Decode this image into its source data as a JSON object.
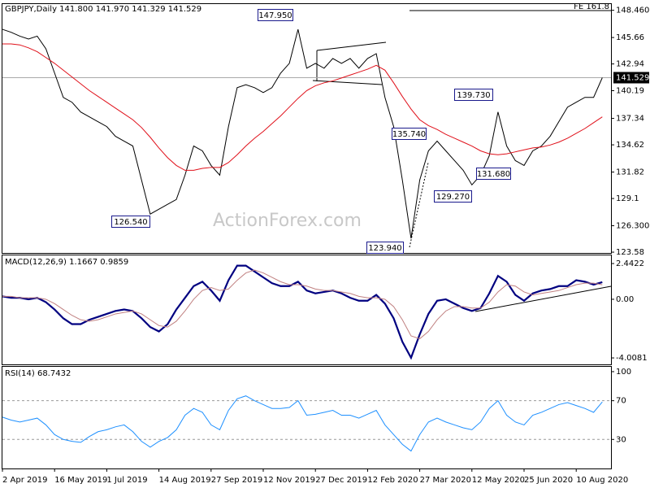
{
  "chart_data": [
    {
      "type": "line",
      "title": "GBPJPY,Daily  141.800 141.970 141.329 141.529",
      "x": [
        "2 Apr 2019",
        null,
        null,
        null,
        null,
        null,
        "16 May 2019",
        null,
        null,
        null,
        null,
        null,
        "1 Jul 2019",
        null,
        null,
        null,
        null,
        null,
        "14 Aug 2019",
        null,
        null,
        null,
        null,
        null,
        "27 Sep 2019",
        null,
        null,
        null,
        null,
        null,
        "12 Nov 2019",
        null,
        null,
        null,
        null,
        null,
        "27 Dec 2019",
        null,
        null,
        null,
        null,
        null,
        "12 Feb 2020",
        null,
        null,
        null,
        null,
        null,
        "27 Mar 2020",
        null,
        null,
        null,
        null,
        null,
        "12 May 2020",
        null,
        null,
        null,
        null,
        null,
        "25 Jun 2020",
        null,
        null,
        null,
        null,
        null,
        "10 Aug 2020",
        null,
        null,
        null
      ],
      "series": [
        {
          "color": "#000000",
          "values": [
            146.5,
            146.2,
            145.8,
            145.5,
            145.8,
            144.5,
            142.0,
            139.5,
            139.0,
            138.0,
            137.5,
            137.0,
            136.5,
            135.5,
            135.0,
            134.5,
            131.0,
            127.5,
            128.0,
            128.5,
            129.0,
            131.5,
            134.5,
            134.0,
            132.5,
            131.5,
            136.5,
            140.5,
            140.8,
            140.5,
            140.0,
            140.5,
            142.0,
            143.0,
            146.5,
            142.5,
            143.0,
            142.5,
            143.5,
            143.0,
            143.5,
            142.5,
            143.5,
            144.0,
            139.5,
            136.5,
            131.0,
            125.0,
            131.0,
            134.0,
            135.0,
            134.0,
            133.0,
            132.0,
            130.5,
            131.5,
            133.5,
            138.0,
            134.5,
            133.0,
            132.5,
            134.0,
            134.5,
            135.5,
            137.0,
            138.5,
            139.0,
            139.5,
            139.5,
            141.529
          ]
        },
        {
          "color": "#e0101a",
          "values": [
            145.0,
            145.0,
            144.9,
            144.6,
            144.2,
            143.6,
            143.0,
            142.3,
            141.6,
            140.9,
            140.2,
            139.6,
            139.0,
            138.4,
            137.8,
            137.2,
            136.4,
            135.4,
            134.3,
            133.3,
            132.5,
            132.0,
            132.0,
            132.2,
            132.3,
            132.3,
            132.8,
            133.6,
            134.5,
            135.3,
            136.0,
            136.8,
            137.6,
            138.5,
            139.4,
            140.2,
            140.7,
            141.0,
            141.2,
            141.5,
            141.8,
            142.1,
            142.4,
            142.8,
            142.3,
            141.0,
            139.6,
            138.3,
            137.2,
            136.6,
            136.2,
            135.7,
            135.3,
            134.9,
            134.5,
            134.0,
            133.7,
            133.6,
            133.7,
            133.9,
            134.1,
            134.3,
            134.4,
            134.6,
            134.9,
            135.3,
            135.8,
            136.3,
            136.9,
            137.5
          ]
        }
      ],
      "last": {
        "value": 141.529,
        "label": "141.529"
      },
      "ylim": [
        123.5,
        149.1
      ],
      "yticks": [
        {
          "value": 148.46,
          "label": "148.460"
        },
        145.66,
        142.94,
        140.19,
        137.34,
        134.62,
        131.82,
        129.1,
        {
          "value": 126.3,
          "label": "126.300"
        },
        123.58
      ],
      "annotations": [
        "147.950",
        "126.540",
        "123.940",
        "135.740",
        "139.730",
        "131.680",
        "129.270",
        "FE 161.8"
      ],
      "watermark": "ActionForex.com"
    },
    {
      "type": "line",
      "title": "MACD(12,26,9) 1.1667 0.9859",
      "series": [
        {
          "color": "#000080",
          "values": [
            0.2,
            0.1,
            0.1,
            0,
            0.1,
            -0.2,
            -0.7,
            -1.3,
            -1.7,
            -1.7,
            -1.4,
            -1.2,
            -1.0,
            -0.8,
            -0.7,
            -0.8,
            -1.3,
            -1.9,
            -2.2,
            -1.7,
            -0.7,
            0.1,
            0.9,
            1.2,
            0.6,
            -0.1,
            1.3,
            2.3,
            2.3,
            1.9,
            1.5,
            1.1,
            0.9,
            0.9,
            1.2,
            0.6,
            0.4,
            0.5,
            0.6,
            0.4,
            0.1,
            -0.1,
            -0.1,
            0.3,
            -0.3,
            -1.3,
            -2.9,
            -4.0,
            -2.4,
            -1.0,
            -0.1,
            0,
            -0.3,
            -0.6,
            -0.8,
            -0.6,
            0.4,
            1.6,
            1.2,
            0.3,
            -0.1,
            0.4,
            0.6,
            0.7,
            0.9,
            0.9,
            1.3,
            1.2,
            1.0,
            1.17
          ]
        },
        {
          "color": "#c08080",
          "values": [
            0.2,
            0.2,
            0.1,
            0.1,
            0.1,
            0,
            -0.3,
            -0.7,
            -1.1,
            -1.4,
            -1.5,
            -1.4,
            -1.2,
            -1.0,
            -0.9,
            -0.8,
            -1.0,
            -1.4,
            -1.8,
            -1.9,
            -1.5,
            -0.8,
            0,
            0.6,
            0.8,
            0.6,
            0.7,
            1.3,
            1.8,
            2.0,
            1.8,
            1.5,
            1.2,
            1.0,
            1.0,
            0.9,
            0.7,
            0.6,
            0.6,
            0.5,
            0.4,
            0.2,
            0.1,
            0.1,
            0,
            -0.5,
            -1.4,
            -2.5,
            -2.7,
            -2.2,
            -1.4,
            -0.8,
            -0.5,
            -0.5,
            -0.6,
            -0.6,
            -0.2,
            0.5,
            1.0,
            0.9,
            0.5,
            0.3,
            0.4,
            0.5,
            0.6,
            0.8,
            1.0,
            1.1,
            1.1,
            0.99
          ]
        }
      ],
      "ylim": [
        -4.45,
        3.0
      ],
      "yticks": [
        2.4422,
        {
          "value": 0,
          "label": "0.00"
        },
        -4.0081
      ]
    },
    {
      "type": "line",
      "title": "RSI(14) 68.7432",
      "series": [
        {
          "color": "#1e90ff",
          "values": [
            53,
            50,
            48,
            50,
            52,
            45,
            35,
            30,
            28,
            27,
            33,
            38,
            40,
            43,
            45,
            38,
            28,
            22,
            28,
            32,
            40,
            55,
            62,
            58,
            45,
            40,
            60,
            72,
            75,
            70,
            66,
            62,
            62,
            63,
            70,
            55,
            56,
            58,
            60,
            55,
            55,
            52,
            56,
            60,
            45,
            35,
            25,
            18,
            35,
            48,
            52,
            48,
            45,
            42,
            40,
            48,
            62,
            70,
            55,
            48,
            45,
            55,
            58,
            62,
            66,
            68,
            65,
            62,
            58,
            68.74
          ]
        }
      ],
      "ylim": [
        0,
        105
      ],
      "yticks": [
        100,
        70,
        30
      ],
      "levels": [
        70,
        30
      ]
    }
  ]
}
